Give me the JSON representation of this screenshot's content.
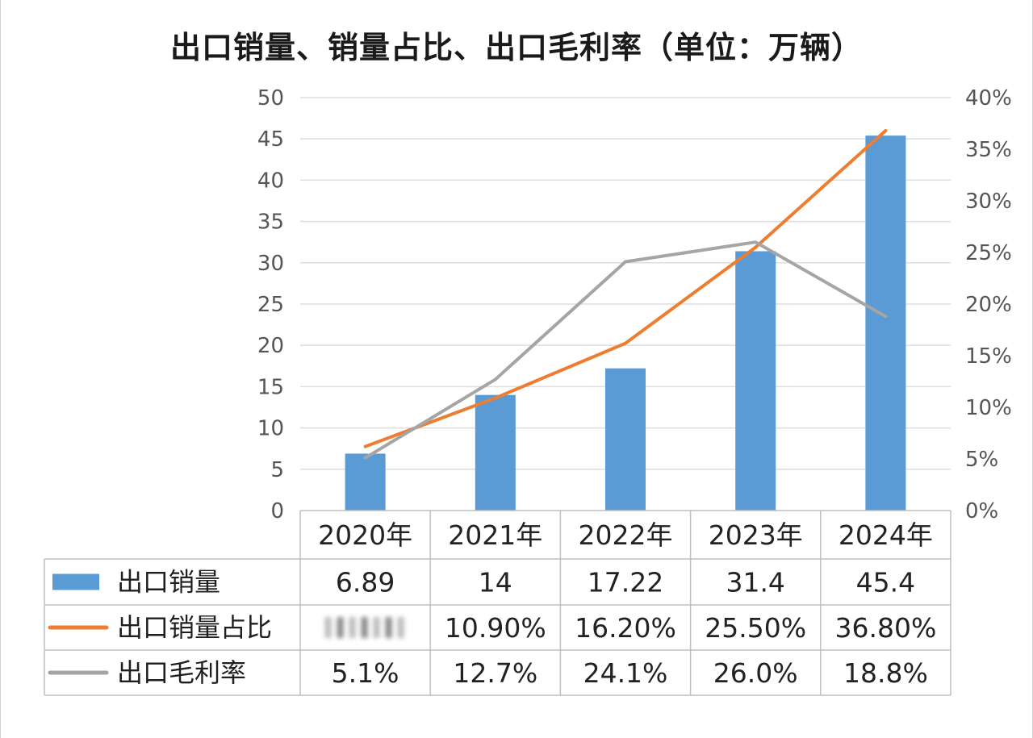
{
  "chart_data": {
    "title": "出口销量、销量占比、出口毛利率（单位：万辆）",
    "type": "bar",
    "categories": [
      "2020年",
      "2021年",
      "2022年",
      "2023年",
      "2024年"
    ],
    "series": [
      {
        "name": "出口销量",
        "type": "bar",
        "axis": "left",
        "color": "#5b9bd5",
        "values": [
          6.89,
          14,
          17.22,
          31.4,
          45.4
        ]
      },
      {
        "name": "出口销量占比",
        "type": "line",
        "axis": "right",
        "color": "#ed7d31",
        "values": [
          6.2,
          10.9,
          16.2,
          25.5,
          36.8
        ]
      },
      {
        "name": "出口毛利率",
        "type": "line",
        "axis": "right",
        "color": "#a5a5a5",
        "values": [
          5.1,
          12.7,
          24.1,
          26.0,
          18.8
        ]
      }
    ],
    "y_left": {
      "min": 0,
      "max": 50,
      "ticks": [
        "0",
        "5",
        "10",
        "15",
        "20",
        "25",
        "30",
        "35",
        "40",
        "45",
        "50"
      ]
    },
    "y_right": {
      "min": 0,
      "max": 40,
      "ticks": [
        "0%",
        "5%",
        "10%",
        "15%",
        "20%",
        "25%",
        "30%",
        "35%",
        "40%"
      ]
    },
    "grid": true,
    "legend": "data-table",
    "table": {
      "rows": [
        {
          "label": "出口销量",
          "cells": [
            "6.89",
            "14",
            "17.22",
            "31.4",
            "45.4"
          ]
        },
        {
          "label": "出口销量占比",
          "cells": [
            "",
            "10.90%",
            "16.20%",
            "25.50%",
            "36.80%"
          ]
        },
        {
          "label": "出口毛利率",
          "cells": [
            "5.1%",
            "12.7%",
            "24.1%",
            "26.0%",
            "18.8%"
          ]
        }
      ]
    }
  }
}
